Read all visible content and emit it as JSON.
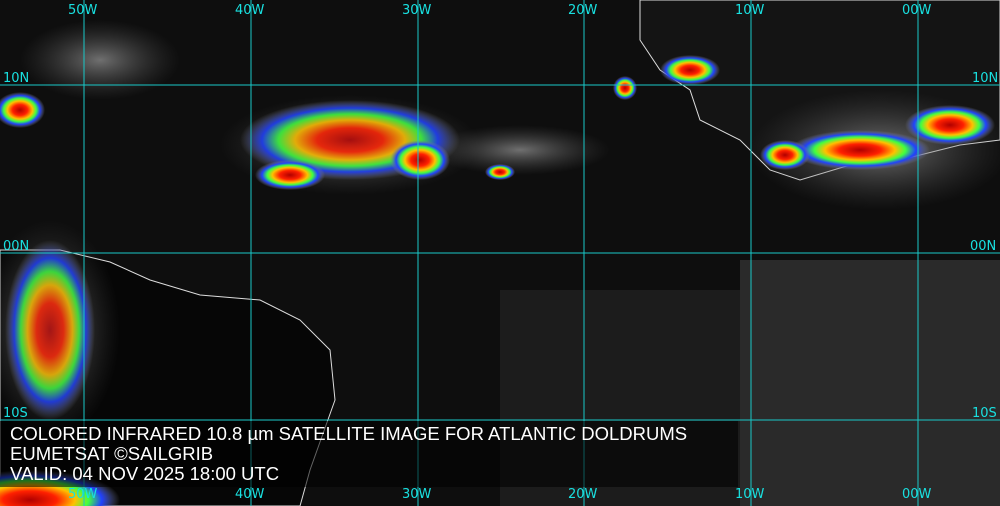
{
  "map": {
    "longitude_labels": [
      "50W",
      "40W",
      "30W",
      "20W",
      "10W",
      "00W"
    ],
    "latitude_labels": {
      "north": "10N",
      "equator": "00N",
      "south": "10S"
    },
    "grid_color": "#19e0e0"
  },
  "caption": {
    "title": "COLORED INFRARED 10.8 µm SATELLITE IMAGE FOR ATLANTIC DOLDRUMS",
    "source": "EUMETSAT ©SAILGRIB",
    "valid": "VALID:  04 NOV 2025 18:00 UTC"
  }
}
